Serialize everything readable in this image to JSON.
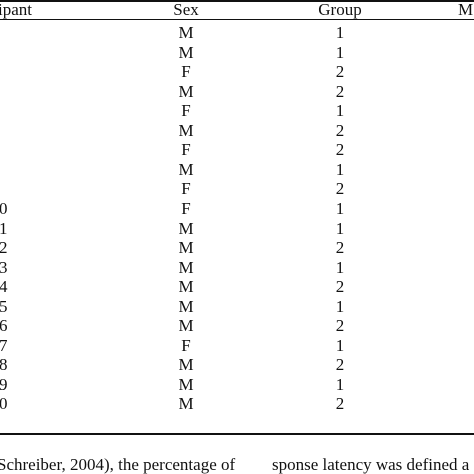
{
  "table": {
    "headers": {
      "participant": "ipant",
      "sex": "Sex",
      "group": "Group",
      "cut": "M"
    },
    "rows": [
      {
        "participant": "",
        "sex": "M",
        "group": "1"
      },
      {
        "participant": "",
        "sex": "M",
        "group": "1"
      },
      {
        "participant": "",
        "sex": "F",
        "group": "2"
      },
      {
        "participant": "",
        "sex": "M",
        "group": "2"
      },
      {
        "participant": "",
        "sex": "F",
        "group": "1"
      },
      {
        "participant": "",
        "sex": "M",
        "group": "2"
      },
      {
        "participant": "",
        "sex": "F",
        "group": "2"
      },
      {
        "participant": "",
        "sex": "M",
        "group": "1"
      },
      {
        "participant": "",
        "sex": "F",
        "group": "2"
      },
      {
        "participant": "0",
        "sex": "F",
        "group": "1"
      },
      {
        "participant": "1",
        "sex": "M",
        "group": "1"
      },
      {
        "participant": "2",
        "sex": "M",
        "group": "2"
      },
      {
        "participant": "3",
        "sex": "M",
        "group": "1"
      },
      {
        "participant": "4",
        "sex": "M",
        "group": "2"
      },
      {
        "participant": "5",
        "sex": "M",
        "group": "1"
      },
      {
        "participant": "6",
        "sex": "M",
        "group": "2"
      },
      {
        "participant": "7",
        "sex": "F",
        "group": "1"
      },
      {
        "participant": "8",
        "sex": "M",
        "group": "2"
      },
      {
        "participant": "9",
        "sex": "M",
        "group": "1"
      },
      {
        "participant": "0",
        "sex": "M",
        "group": "2"
      }
    ]
  },
  "body_text": {
    "left": "Schreiber, 2004), the percentage of",
    "right": "sponse latency was defined a"
  }
}
